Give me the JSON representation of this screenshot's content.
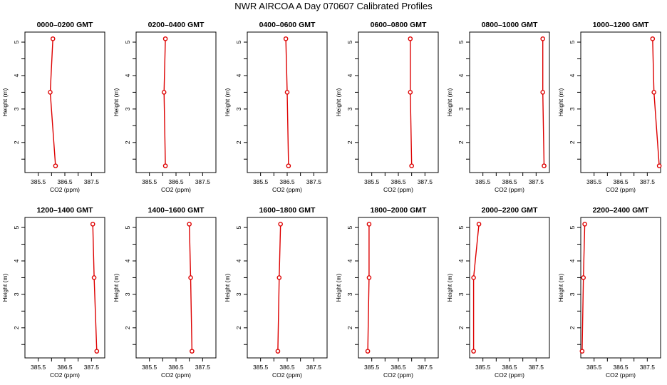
{
  "figure_title": "NWR AIRCOA A  Day 070607  Calibrated Profiles",
  "colors": {
    "profile_line": "#dd0000",
    "marker": "#dd0000",
    "axis": "#000000"
  },
  "chart_data": [
    {
      "type": "line",
      "title": "0000–0200 GMT",
      "xlabel": "CO2 (ppm)",
      "ylabel": "Height (m)",
      "xlim": [
        385.0,
        388.0
      ],
      "ylim": [
        1.1,
        5.3
      ],
      "xticks": [
        385.5,
        386.5,
        387.5
      ],
      "xtick_labels": [
        "385.5",
        "386.5",
        "387.5"
      ],
      "yticks": [
        2,
        3,
        4,
        5
      ],
      "ytick_labels": [
        "2",
        "3",
        "4",
        "5"
      ],
      "x": [
        386.15,
        385.95,
        386.05
      ],
      "y": [
        1.3,
        3.5,
        5.1
      ]
    },
    {
      "type": "line",
      "title": "0200–0400 GMT",
      "xlabel": "CO2 (ppm)",
      "ylabel": "Height (m)",
      "xlim": [
        385.0,
        388.0
      ],
      "ylim": [
        1.1,
        5.3
      ],
      "xticks": [
        385.5,
        386.5,
        387.5
      ],
      "xtick_labels": [
        "385.5",
        "386.5",
        "387.5"
      ],
      "yticks": [
        2,
        3,
        4,
        5
      ],
      "ytick_labels": [
        "2",
        "3",
        "4",
        "5"
      ],
      "x": [
        386.1,
        386.05,
        386.1
      ],
      "y": [
        1.3,
        3.5,
        5.1
      ]
    },
    {
      "type": "line",
      "title": "0400–0600 GMT",
      "xlabel": "CO2 (ppm)",
      "ylabel": "Height (m)",
      "xlim": [
        385.0,
        388.0
      ],
      "ylim": [
        1.1,
        5.3
      ],
      "xticks": [
        385.5,
        386.5,
        387.5
      ],
      "xtick_labels": [
        "385.5",
        "386.5",
        "387.5"
      ],
      "yticks": [
        2,
        3,
        4,
        5
      ],
      "ytick_labels": [
        "2",
        "3",
        "4",
        "5"
      ],
      "x": [
        386.55,
        386.5,
        386.45
      ],
      "y": [
        1.3,
        3.5,
        5.1
      ]
    },
    {
      "type": "line",
      "title": "0600–0800 GMT",
      "xlabel": "CO2 (ppm)",
      "ylabel": "Height (m)",
      "xlim": [
        385.0,
        388.0
      ],
      "ylim": [
        1.1,
        5.3
      ],
      "xticks": [
        385.5,
        386.5,
        387.5
      ],
      "xtick_labels": [
        "385.5",
        "386.5",
        "387.5"
      ],
      "yticks": [
        2,
        3,
        4,
        5
      ],
      "ytick_labels": [
        "2",
        "3",
        "4",
        "5"
      ],
      "x": [
        387.0,
        386.95,
        386.95
      ],
      "y": [
        1.3,
        3.5,
        5.1
      ]
    },
    {
      "type": "line",
      "title": "0800–1000 GMT",
      "xlabel": "CO2 (ppm)",
      "ylabel": "Height (m)",
      "xlim": [
        385.0,
        388.0
      ],
      "ylim": [
        1.1,
        5.3
      ],
      "xticks": [
        385.5,
        386.5,
        387.5
      ],
      "xtick_labels": [
        "385.5",
        "386.5",
        "387.5"
      ],
      "yticks": [
        2,
        3,
        4,
        5
      ],
      "ytick_labels": [
        "2",
        "3",
        "4",
        "5"
      ],
      "x": [
        387.8,
        387.75,
        387.75
      ],
      "y": [
        1.3,
        3.5,
        5.1
      ]
    },
    {
      "type": "line",
      "title": "1000–1200 GMT",
      "xlabel": "CO2 (ppm)",
      "ylabel": "Height (m)",
      "xlim": [
        385.0,
        388.0
      ],
      "ylim": [
        1.1,
        5.3
      ],
      "xticks": [
        385.5,
        386.5,
        387.5
      ],
      "xtick_labels": [
        "385.5",
        "386.5",
        "387.5"
      ],
      "yticks": [
        2,
        3,
        4,
        5
      ],
      "ytick_labels": [
        "2",
        "3",
        "4",
        "5"
      ],
      "x": [
        387.95,
        387.75,
        387.7
      ],
      "y": [
        1.3,
        3.5,
        5.1
      ]
    },
    {
      "type": "line",
      "title": "1200–1400 GMT",
      "xlabel": "CO2 (ppm)",
      "ylabel": "Height (m)",
      "xlim": [
        385.0,
        388.0
      ],
      "ylim": [
        1.1,
        5.3
      ],
      "xticks": [
        385.5,
        386.5,
        387.5
      ],
      "xtick_labels": [
        "385.5",
        "386.5",
        "387.5"
      ],
      "yticks": [
        2,
        3,
        4,
        5
      ],
      "ytick_labels": [
        "2",
        "3",
        "4",
        "5"
      ],
      "x": [
        387.7,
        387.6,
        387.55
      ],
      "y": [
        1.3,
        3.5,
        5.1
      ]
    },
    {
      "type": "line",
      "title": "1400–1600 GMT",
      "xlabel": "CO2 (ppm)",
      "ylabel": "Height (m)",
      "xlim": [
        385.0,
        388.0
      ],
      "ylim": [
        1.1,
        5.3
      ],
      "xticks": [
        385.5,
        386.5,
        387.5
      ],
      "xtick_labels": [
        "385.5",
        "386.5",
        "387.5"
      ],
      "yticks": [
        2,
        3,
        4,
        5
      ],
      "ytick_labels": [
        "2",
        "3",
        "4",
        "5"
      ],
      "x": [
        387.1,
        387.05,
        387.0
      ],
      "y": [
        1.3,
        3.5,
        5.1
      ]
    },
    {
      "type": "line",
      "title": "1600–1800 GMT",
      "xlabel": "CO2 (ppm)",
      "ylabel": "Height (m)",
      "xlim": [
        385.0,
        388.0
      ],
      "ylim": [
        1.1,
        5.3
      ],
      "xticks": [
        385.5,
        386.5,
        387.5
      ],
      "xtick_labels": [
        "385.5",
        "386.5",
        "387.5"
      ],
      "yticks": [
        2,
        3,
        4,
        5
      ],
      "ytick_labels": [
        "2",
        "3",
        "4",
        "5"
      ],
      "x": [
        386.15,
        386.2,
        386.25
      ],
      "y": [
        1.3,
        3.5,
        5.1
      ]
    },
    {
      "type": "line",
      "title": "1800–2000 GMT",
      "xlabel": "CO2 (ppm)",
      "ylabel": "Height (m)",
      "xlim": [
        385.0,
        388.0
      ],
      "ylim": [
        1.1,
        5.3
      ],
      "xticks": [
        385.5,
        386.5,
        387.5
      ],
      "xtick_labels": [
        "385.5",
        "386.5",
        "387.5"
      ],
      "yticks": [
        2,
        3,
        4,
        5
      ],
      "ytick_labels": [
        "2",
        "3",
        "4",
        "5"
      ],
      "x": [
        385.35,
        385.4,
        385.4
      ],
      "y": [
        1.3,
        3.5,
        5.1
      ]
    },
    {
      "type": "line",
      "title": "2000–2200 GMT",
      "xlabel": "CO2 (ppm)",
      "ylabel": "Height (m)",
      "xlim": [
        385.0,
        388.0
      ],
      "ylim": [
        1.1,
        5.3
      ],
      "xticks": [
        385.5,
        386.5,
        387.5
      ],
      "xtick_labels": [
        "385.5",
        "386.5",
        "387.5"
      ],
      "yticks": [
        2,
        3,
        4,
        5
      ],
      "ytick_labels": [
        "2",
        "3",
        "4",
        "5"
      ],
      "x": [
        385.15,
        385.15,
        385.35
      ],
      "y": [
        1.3,
        3.5,
        5.1
      ]
    },
    {
      "type": "line",
      "title": "2200–2400 GMT",
      "xlabel": "CO2 (ppm)",
      "ylabel": "Height (m)",
      "xlim": [
        385.0,
        388.0
      ],
      "ylim": [
        1.1,
        5.3
      ],
      "xticks": [
        385.5,
        386.5,
        387.5
      ],
      "xtick_labels": [
        "385.5",
        "386.5",
        "387.5"
      ],
      "yticks": [
        2,
        3,
        4,
        5
      ],
      "ytick_labels": [
        "2",
        "3",
        "4",
        "5"
      ],
      "x": [
        385.05,
        385.1,
        385.15
      ],
      "y": [
        1.3,
        3.5,
        5.1
      ]
    }
  ]
}
